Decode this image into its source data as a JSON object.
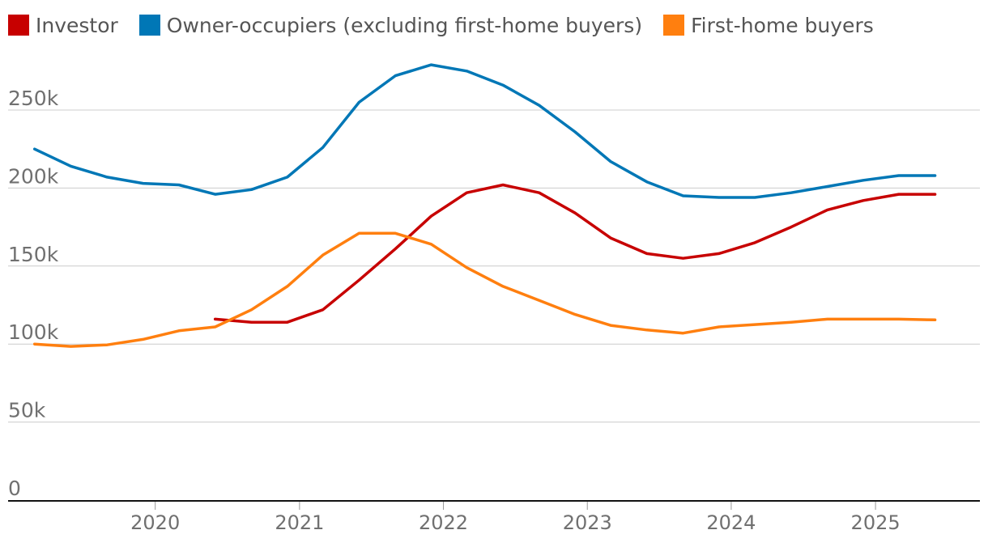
{
  "chart_data": {
    "type": "line",
    "title": "",
    "xlabel": "",
    "ylabel": "",
    "ylim": [
      0,
      290000
    ],
    "xlim": [
      "2019-01-01",
      "2025-10-01"
    ],
    "grid": true,
    "legend_position": "top-left",
    "y_ticks": [
      {
        "value": 0,
        "label": "0"
      },
      {
        "value": 50000,
        "label": "50k"
      },
      {
        "value": 100000,
        "label": "100k"
      },
      {
        "value": 150000,
        "label": "150k"
      },
      {
        "value": 200000,
        "label": "200k"
      },
      {
        "value": 250000,
        "label": "250k"
      }
    ],
    "x_ticks": [
      {
        "value": "2020-01-01",
        "label": "2020"
      },
      {
        "value": "2021-01-01",
        "label": "2021"
      },
      {
        "value": "2022-01-01",
        "label": "2022"
      },
      {
        "value": "2023-01-01",
        "label": "2023"
      },
      {
        "value": "2024-01-01",
        "label": "2024"
      },
      {
        "value": "2025-01-01",
        "label": "2025"
      }
    ],
    "series": [
      {
        "name": "Investor",
        "color": "#c70000",
        "points": [
          {
            "x": "2020-06-01",
            "y": 116000
          },
          {
            "x": "2020-09-01",
            "y": 114000
          },
          {
            "x": "2020-12-01",
            "y": 114000
          },
          {
            "x": "2021-03-01",
            "y": 122000
          },
          {
            "x": "2021-06-01",
            "y": 141000
          },
          {
            "x": "2021-09-01",
            "y": 161000
          },
          {
            "x": "2021-12-01",
            "y": 182000
          },
          {
            "x": "2022-03-01",
            "y": 197000
          },
          {
            "x": "2022-06-01",
            "y": 202000
          },
          {
            "x": "2022-09-01",
            "y": 197000
          },
          {
            "x": "2022-12-01",
            "y": 184000
          },
          {
            "x": "2023-03-01",
            "y": 168000
          },
          {
            "x": "2023-06-01",
            "y": 158000
          },
          {
            "x": "2023-09-01",
            "y": 155000
          },
          {
            "x": "2023-12-01",
            "y": 158000
          },
          {
            "x": "2024-03-01",
            "y": 165000
          },
          {
            "x": "2024-06-01",
            "y": 175000
          },
          {
            "x": "2024-09-01",
            "y": 186000
          },
          {
            "x": "2024-12-01",
            "y": 192000
          },
          {
            "x": "2025-03-01",
            "y": 196000
          },
          {
            "x": "2025-06-01",
            "y": 196000
          }
        ]
      },
      {
        "name": "Owner-occupiers (excluding first-home buyers)",
        "color": "#0077b6",
        "points": [
          {
            "x": "2019-03-01",
            "y": 225000
          },
          {
            "x": "2019-06-01",
            "y": 214000
          },
          {
            "x": "2019-09-01",
            "y": 207000
          },
          {
            "x": "2019-12-01",
            "y": 203000
          },
          {
            "x": "2020-03-01",
            "y": 202000
          },
          {
            "x": "2020-06-01",
            "y": 196000
          },
          {
            "x": "2020-09-01",
            "y": 199000
          },
          {
            "x": "2020-12-01",
            "y": 207000
          },
          {
            "x": "2021-03-01",
            "y": 226000
          },
          {
            "x": "2021-06-01",
            "y": 255000
          },
          {
            "x": "2021-09-01",
            "y": 272000
          },
          {
            "x": "2021-12-01",
            "y": 279000
          },
          {
            "x": "2022-03-01",
            "y": 275000
          },
          {
            "x": "2022-06-01",
            "y": 266000
          },
          {
            "x": "2022-09-01",
            "y": 253000
          },
          {
            "x": "2022-12-01",
            "y": 236000
          },
          {
            "x": "2023-03-01",
            "y": 217000
          },
          {
            "x": "2023-06-01",
            "y": 204000
          },
          {
            "x": "2023-09-01",
            "y": 195000
          },
          {
            "x": "2023-12-01",
            "y": 194000
          },
          {
            "x": "2024-03-01",
            "y": 194000
          },
          {
            "x": "2024-06-01",
            "y": 197000
          },
          {
            "x": "2024-09-01",
            "y": 201000
          },
          {
            "x": "2024-12-01",
            "y": 205000
          },
          {
            "x": "2025-03-01",
            "y": 208000
          },
          {
            "x": "2025-06-01",
            "y": 208000
          }
        ]
      },
      {
        "name": "First-home buyers",
        "color": "#ff7f0f",
        "points": [
          {
            "x": "2019-03-01",
            "y": 100000
          },
          {
            "x": "2019-06-01",
            "y": 98500
          },
          {
            "x": "2019-09-01",
            "y": 99500
          },
          {
            "x": "2019-12-01",
            "y": 103000
          },
          {
            "x": "2020-03-01",
            "y": 108500
          },
          {
            "x": "2020-06-01",
            "y": 111000
          },
          {
            "x": "2020-09-01",
            "y": 122000
          },
          {
            "x": "2020-12-01",
            "y": 137000
          },
          {
            "x": "2021-03-01",
            "y": 157000
          },
          {
            "x": "2021-06-01",
            "y": 171000
          },
          {
            "x": "2021-09-01",
            "y": 171000
          },
          {
            "x": "2021-12-01",
            "y": 164000
          },
          {
            "x": "2022-03-01",
            "y": 149000
          },
          {
            "x": "2022-06-01",
            "y": 137000
          },
          {
            "x": "2022-09-01",
            "y": 128000
          },
          {
            "x": "2022-12-01",
            "y": 119000
          },
          {
            "x": "2023-03-01",
            "y": 112000
          },
          {
            "x": "2023-06-01",
            "y": 109000
          },
          {
            "x": "2023-09-01",
            "y": 107000
          },
          {
            "x": "2023-12-01",
            "y": 111000
          },
          {
            "x": "2024-03-01",
            "y": 112500
          },
          {
            "x": "2024-06-01",
            "y": 114000
          },
          {
            "x": "2024-09-01",
            "y": 116000
          },
          {
            "x": "2024-12-01",
            "y": 116000
          },
          {
            "x": "2025-03-01",
            "y": 116000
          },
          {
            "x": "2025-06-01",
            "y": 115500
          }
        ]
      }
    ]
  }
}
